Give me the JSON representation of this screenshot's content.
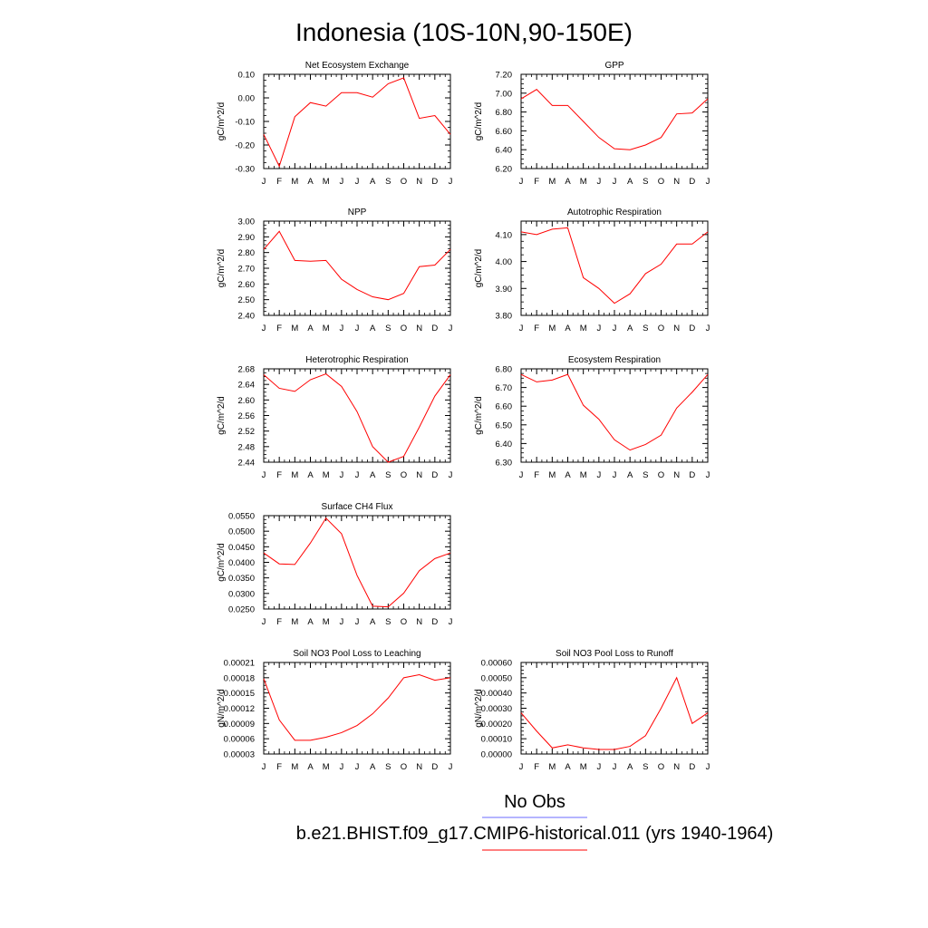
{
  "title": "Indonesia (10S-10N,90-150E)",
  "legend": [
    {
      "label": "No Obs",
      "color": "#6b6bff"
    },
    {
      "label": "b.e21.BHIST.f09_g17.CMIP6-historical.011 (yrs 1940-1964)",
      "color": "#ff0000"
    }
  ],
  "chart_data": [
    {
      "type": "line",
      "title": "Net Ecosystem Exchange",
      "ylabel": "gC/m^2/d",
      "categories": [
        "J",
        "F",
        "M",
        "A",
        "M",
        "J",
        "J",
        "A",
        "S",
        "O",
        "N",
        "D",
        "J"
      ],
      "ylim": [
        -0.3,
        0.1
      ],
      "yticks": [
        -0.3,
        -0.2,
        -0.1,
        0.0,
        0.1
      ],
      "ytick_labels": [
        "-0.30",
        "-0.20",
        "-0.10",
        "0.00",
        "0.10"
      ],
      "series": [
        {
          "values": [
            -0.155,
            -0.29,
            -0.08,
            -0.02,
            -0.035,
            0.022,
            0.022,
            0.003,
            0.06,
            0.085,
            -0.087,
            -0.075,
            -0.155
          ],
          "color": "#ff0000"
        }
      ]
    },
    {
      "type": "line",
      "title": "GPP",
      "ylabel": "gC/m^2/d",
      "categories": [
        "J",
        "F",
        "M",
        "A",
        "M",
        "J",
        "J",
        "A",
        "S",
        "O",
        "N",
        "D",
        "J"
      ],
      "ylim": [
        6.2,
        7.2
      ],
      "yticks": [
        6.2,
        6.4,
        6.6,
        6.8,
        7.0,
        7.2
      ],
      "ytick_labels": [
        "6.20",
        "6.40",
        "6.60",
        "6.80",
        "7.00",
        "7.20"
      ],
      "series": [
        {
          "values": [
            6.94,
            7.04,
            6.87,
            6.87,
            6.7,
            6.53,
            6.41,
            6.4,
            6.45,
            6.53,
            6.78,
            6.79,
            6.94
          ],
          "color": "#ff0000"
        }
      ]
    },
    {
      "type": "line",
      "title": "NPP",
      "ylabel": "gC/m^2/d",
      "categories": [
        "J",
        "F",
        "M",
        "A",
        "M",
        "J",
        "J",
        "A",
        "S",
        "O",
        "N",
        "D",
        "J"
      ],
      "ylim": [
        2.4,
        3.0
      ],
      "yticks": [
        2.4,
        2.5,
        2.6,
        2.7,
        2.8,
        2.9,
        3.0
      ],
      "ytick_labels": [
        "2.40",
        "2.50",
        "2.60",
        "2.70",
        "2.80",
        "2.90",
        "3.00"
      ],
      "series": [
        {
          "values": [
            2.82,
            2.935,
            2.75,
            2.745,
            2.75,
            2.63,
            2.565,
            2.518,
            2.5,
            2.54,
            2.71,
            2.72,
            2.82
          ],
          "color": "#ff0000"
        }
      ]
    },
    {
      "type": "line",
      "title": "Autotrophic Respiration",
      "ylabel": "gC/m^2/d",
      "categories": [
        "J",
        "F",
        "M",
        "A",
        "M",
        "J",
        "J",
        "A",
        "S",
        "O",
        "N",
        "D",
        "J"
      ],
      "ylim": [
        3.8,
        4.15
      ],
      "yticks": [
        3.8,
        3.9,
        4.0,
        4.1
      ],
      "ytick_labels": [
        "3.80",
        "3.90",
        "4.00",
        "4.10"
      ],
      "series": [
        {
          "values": [
            4.11,
            4.1,
            4.12,
            4.125,
            3.94,
            3.9,
            3.845,
            3.88,
            3.955,
            3.99,
            4.065,
            4.065,
            4.11
          ],
          "color": "#ff0000"
        }
      ]
    },
    {
      "type": "line",
      "title": "Heterotrophic Respiration",
      "ylabel": "gC/m^2/d",
      "categories": [
        "J",
        "F",
        "M",
        "A",
        "M",
        "J",
        "J",
        "A",
        "S",
        "O",
        "N",
        "D",
        "J"
      ],
      "ylim": [
        2.44,
        2.68
      ],
      "yticks": [
        2.44,
        2.48,
        2.52,
        2.56,
        2.6,
        2.64,
        2.68
      ],
      "ytick_labels": [
        "2.44",
        "2.48",
        "2.52",
        "2.56",
        "2.60",
        "2.64",
        "2.68"
      ],
      "series": [
        {
          "values": [
            2.665,
            2.63,
            2.622,
            2.652,
            2.667,
            2.635,
            2.57,
            2.48,
            2.44,
            2.455,
            2.53,
            2.61,
            2.665
          ],
          "color": "#ff0000"
        }
      ]
    },
    {
      "type": "line",
      "title": "Ecosystem Respiration",
      "ylabel": "gC/m^2/d",
      "categories": [
        "J",
        "F",
        "M",
        "A",
        "M",
        "J",
        "J",
        "A",
        "S",
        "O",
        "N",
        "D",
        "J"
      ],
      "ylim": [
        6.3,
        6.8
      ],
      "yticks": [
        6.3,
        6.4,
        6.5,
        6.6,
        6.7,
        6.8
      ],
      "ytick_labels": [
        "6.30",
        "6.40",
        "6.50",
        "6.60",
        "6.70",
        "6.80"
      ],
      "series": [
        {
          "values": [
            6.77,
            6.73,
            6.74,
            6.77,
            6.605,
            6.53,
            6.42,
            6.365,
            6.395,
            6.445,
            6.59,
            6.675,
            6.77
          ],
          "color": "#ff0000"
        }
      ]
    },
    {
      "type": "line",
      "title": "Surface CH4 Flux",
      "ylabel": "gC/m^2/d",
      "categories": [
        "J",
        "F",
        "M",
        "A",
        "M",
        "J",
        "J",
        "A",
        "S",
        "O",
        "N",
        "D",
        "J"
      ],
      "ylim": [
        0.025,
        0.055
      ],
      "yticks": [
        0.025,
        0.03,
        0.035,
        0.04,
        0.045,
        0.05,
        0.055
      ],
      "ytick_labels": [
        "0.0250",
        "0.0300",
        "0.0350",
        "0.0400",
        "0.0450",
        "0.0500",
        "0.0550"
      ],
      "series": [
        {
          "values": [
            0.043,
            0.0395,
            0.0393,
            0.0462,
            0.0542,
            0.0492,
            0.0358,
            0.0259,
            0.0257,
            0.0301,
            0.0373,
            0.0412,
            0.043
          ],
          "color": "#ff0000"
        }
      ]
    },
    {
      "type": "line",
      "title": "Soil NO3 Pool Loss to Leaching",
      "ylabel": "gN/m^2/d",
      "categories": [
        "J",
        "F",
        "M",
        "A",
        "M",
        "J",
        "J",
        "A",
        "S",
        "O",
        "N",
        "D",
        "J"
      ],
      "ylim": [
        3e-05,
        0.00021
      ],
      "yticks": [
        3e-05,
        6e-05,
        9e-05,
        0.00012,
        0.00015,
        0.00018,
        0.00021
      ],
      "ytick_labels": [
        "0.00003",
        "0.00006",
        "0.00009",
        "0.00012",
        "0.00015",
        "0.00018",
        "0.00021"
      ],
      "series": [
        {
          "values": [
            0.000178,
            9.7e-05,
            5.7e-05,
            5.7e-05,
            6.3e-05,
            7.2e-05,
            8.6e-05,
            0.000109,
            0.00014,
            0.00018,
            0.000186,
            0.000175,
            0.00018
          ],
          "color": "#ff0000"
        }
      ]
    },
    {
      "type": "line",
      "title": "Soil NO3 Pool Loss to Runoff",
      "ylabel": "gN/m^2/d",
      "categories": [
        "J",
        "F",
        "M",
        "A",
        "M",
        "J",
        "J",
        "A",
        "S",
        "O",
        "N",
        "D",
        "J"
      ],
      "ylim": [
        0.0,
        0.0006
      ],
      "yticks": [
        0.0,
        0.0001,
        0.0002,
        0.0003,
        0.0004,
        0.0005,
        0.0006
      ],
      "ytick_labels": [
        "0.00000",
        "0.00010",
        "0.00020",
        "0.00030",
        "0.00040",
        "0.00050",
        "0.00060"
      ],
      "series": [
        {
          "values": [
            0.00027,
            0.00015,
            4e-05,
            6e-05,
            4e-05,
            3e-05,
            3e-05,
            5e-05,
            0.00012,
            0.0003,
            0.0005,
            0.0002,
            0.00027
          ],
          "color": "#ff0000"
        }
      ]
    }
  ]
}
